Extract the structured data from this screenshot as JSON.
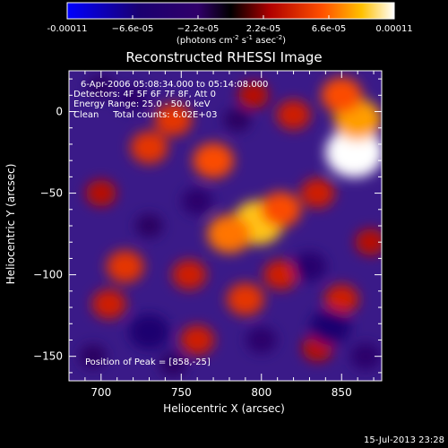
{
  "chart_data": {
    "type": "heatmap",
    "title": "Reconstructed RHESSI Image",
    "xlabel": "Heliocentric X (arcsec)",
    "ylabel": "Heliocentric Y (arcsec)",
    "xlim": [
      680,
      875
    ],
    "ylim": [
      -165,
      25
    ],
    "x_ticks": [
      700,
      750,
      800,
      850
    ],
    "y_ticks": [
      0,
      -50,
      -100,
      -150
    ],
    "x_tick_labels": [
      "700",
      "750",
      "800",
      "850"
    ],
    "y_tick_labels": [
      "0",
      "−50",
      "−100",
      "−150"
    ],
    "colorbar": {
      "range": [
        -0.00011,
        0.00011
      ],
      "tick_values": [
        -0.00011,
        -6.6e-05,
        -2.2e-05,
        2.2e-05,
        6.6e-05,
        0.00011
      ],
      "tick_labels": [
        "-0.00011",
        "−6.6e-05",
        "−2.2e-05",
        "2.2e-05",
        "6.6e-05",
        "0.00011"
      ],
      "unit_base": "(photons cm",
      "unit_sup1": "-2",
      "unit_mid": " s",
      "unit_sup2": "-1",
      "unit_mid2": " asec",
      "unit_sup3": "-2",
      "unit_end": ")"
    },
    "annotations": [
      "6-Apr-2006 05:08:34.000 to 05:14:08.000",
      "Detectors: 4F 5F 6F 7F 8F, Att 0",
      "Energy Range: 25.0 - 50.0 keV",
      "Clean     Total counts: 6.02E+03"
    ],
    "peak_label": "Position of Peak = [858,-25]",
    "peak": {
      "x": 858,
      "y": -25,
      "value": 0.00011
    },
    "intensity_blobs": [
      {
        "x": 858,
        "y": -25,
        "value": 0.00011
      },
      {
        "x": 860,
        "y": -5,
        "value": 8e-05
      },
      {
        "x": 850,
        "y": 10,
        "value": 6e-05
      },
      {
        "x": 798,
        "y": -68,
        "value": 9e-05
      },
      {
        "x": 780,
        "y": -75,
        "value": 7e-05
      },
      {
        "x": 812,
        "y": -60,
        "value": 6e-05
      },
      {
        "x": 770,
        "y": -30,
        "value": 6e-05
      },
      {
        "x": 745,
        "y": -5,
        "value": 5e-05
      },
      {
        "x": 730,
        "y": -22,
        "value": 5e-05
      },
      {
        "x": 715,
        "y": -95,
        "value": 5e-05
      },
      {
        "x": 705,
        "y": -118,
        "value": 4e-05
      },
      {
        "x": 820,
        "y": -2,
        "value": 4e-05
      },
      {
        "x": 795,
        "y": 10,
        "value": 3e-05
      },
      {
        "x": 835,
        "y": -50,
        "value": 4e-05
      },
      {
        "x": 755,
        "y": -100,
        "value": 4e-05
      },
      {
        "x": 790,
        "y": -115,
        "value": 5e-05
      },
      {
        "x": 812,
        "y": -100,
        "value": 4e-05
      },
      {
        "x": 760,
        "y": -140,
        "value": 4e-05
      },
      {
        "x": 850,
        "y": -115,
        "value": 4e-05
      },
      {
        "x": 835,
        "y": -145,
        "value": 3e-05
      },
      {
        "x": 868,
        "y": -80,
        "value": 3e-05
      },
      {
        "x": 700,
        "y": -50,
        "value": 3e-05
      },
      {
        "x": 730,
        "y": -70,
        "value": -2e-05
      },
      {
        "x": 760,
        "y": -55,
        "value": -3e-05
      },
      {
        "x": 830,
        "y": -95,
        "value": -4e-05
      },
      {
        "x": 843,
        "y": -132,
        "value": -6e-05
      },
      {
        "x": 730,
        "y": -135,
        "value": -6e-05
      },
      {
        "x": 720,
        "y": 8,
        "value": -3e-05
      },
      {
        "x": 785,
        "y": -5,
        "value": -2e-05
      },
      {
        "x": 800,
        "y": -140,
        "value": -3e-05
      },
      {
        "x": 865,
        "y": -150,
        "value": -3e-05
      },
      {
        "x": 745,
        "y": -155,
        "value": -2e-05
      },
      {
        "x": 695,
        "y": -150,
        "value": -2e-05
      },
      {
        "x": 700,
        "y": 15,
        "value": -2e-05
      }
    ]
  },
  "timestamp": "15-Jul-2013 23:28"
}
